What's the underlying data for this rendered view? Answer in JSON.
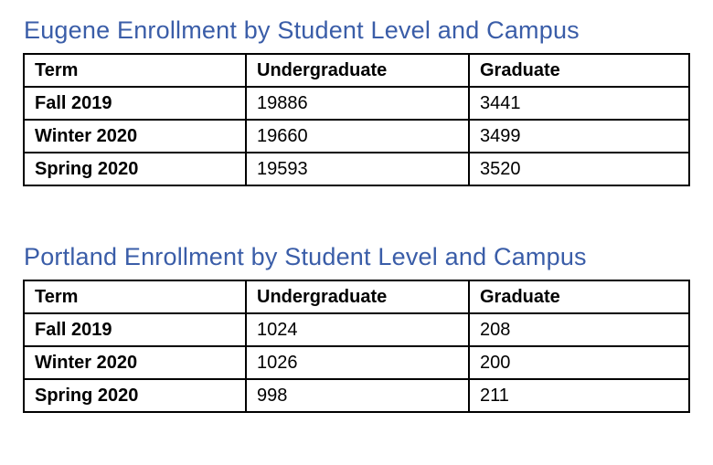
{
  "colors": {
    "title_blue": "#3a5da8",
    "table_border": "#000000",
    "text": "#000000",
    "background": "#ffffff"
  },
  "sections": [
    {
      "title": "Eugene Enrollment by Student Level and Campus",
      "table": {
        "headers": [
          "Term",
          "Undergraduate",
          "Graduate"
        ],
        "rows": [
          [
            "Fall 2019",
            "19886",
            "3441"
          ],
          [
            "Winter 2020",
            "19660",
            "3499"
          ],
          [
            "Spring 2020",
            "19593",
            "3520"
          ]
        ]
      }
    },
    {
      "title": "Portland Enrollment by Student Level and Campus",
      "table": {
        "headers": [
          "Term",
          "Undergraduate",
          "Graduate"
        ],
        "rows": [
          [
            "Fall 2019",
            "1024",
            "208"
          ],
          [
            "Winter 2020",
            "1026",
            "200"
          ],
          [
            "Spring 2020",
            "998",
            "211"
          ]
        ]
      }
    }
  ]
}
